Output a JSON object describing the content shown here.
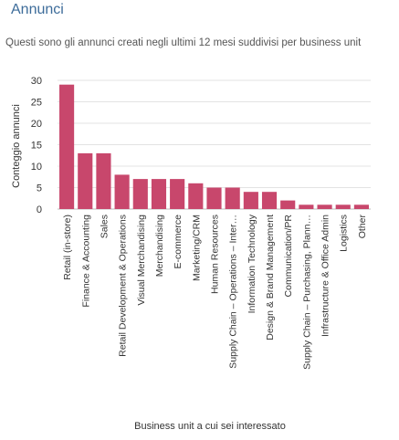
{
  "page": {
    "title": "Annunci",
    "subtitle": "Questi sono gli annunci creati negli ultimi 12 mesi suddivisi per business unit"
  },
  "colors": {
    "bar": "#c8476c",
    "grid": "#e3e3e3",
    "title": "#3d6c9a"
  },
  "chart_data": {
    "type": "bar",
    "title": "",
    "xlabel": "Business unit a cui sei interessato",
    "ylabel": "Conteggio annunci",
    "ylim": [
      0,
      30
    ],
    "yticks": [
      0,
      5,
      10,
      15,
      20,
      25,
      30
    ],
    "grid": true,
    "categories": [
      "Retail (in-store)",
      "Finance & Accounting",
      "Sales",
      "Retail Development & Operations",
      "Visual Merchandising",
      "Merchandising",
      "E-commerce",
      "Marketing/CRM",
      "Human Resources",
      "Supply Chain – Operations – Inter…",
      "Information Technology",
      "Design & Brand Management",
      "Communication/PR",
      "Supply Chain – Purchasing, Plann…",
      "Infrastructure & Office Admin",
      "Logistics",
      "Other"
    ],
    "values": [
      29,
      13,
      13,
      8,
      7,
      7,
      7,
      6,
      5,
      5,
      4,
      4,
      2,
      1,
      1,
      1,
      1
    ]
  }
}
